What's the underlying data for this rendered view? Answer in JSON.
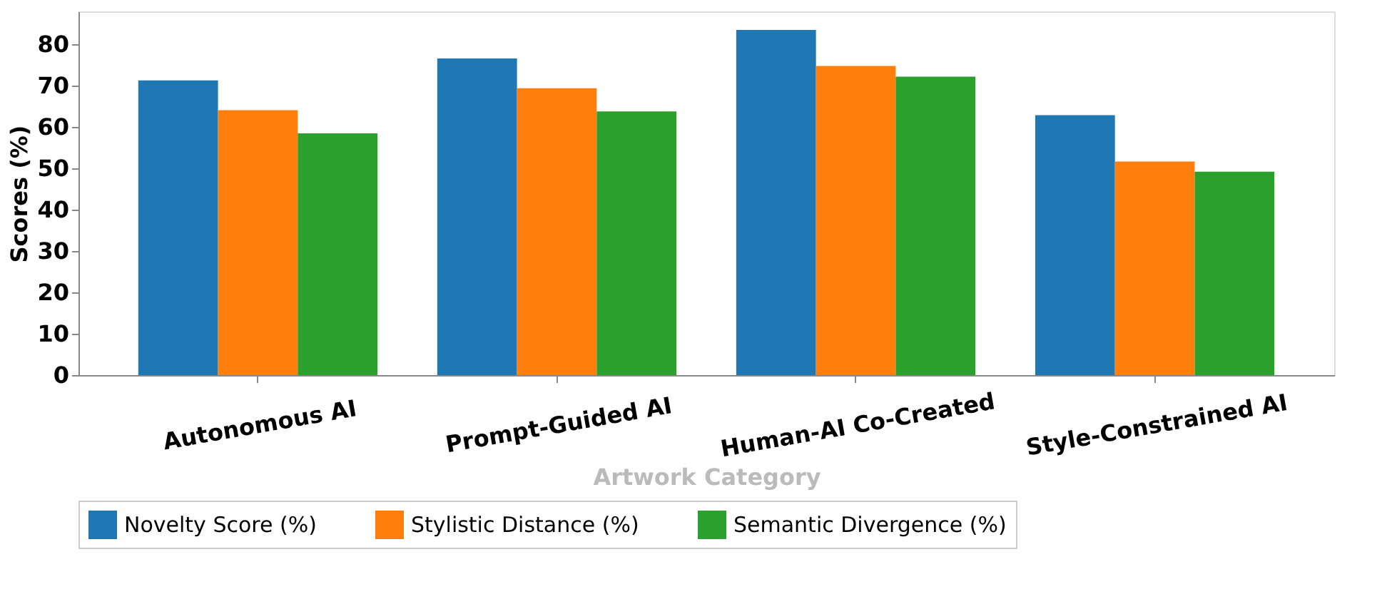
{
  "chart_data": {
    "type": "bar",
    "xlabel": "Artwork Category",
    "ylabel": "Scores (%)",
    "categories": [
      "Autonomous AI",
      "Prompt-Guided AI",
      "Human-AI Co-Created",
      "Style-Constrained AI"
    ],
    "series": [
      {
        "name": "Novelty Score (%)",
        "color": "#1f77b4",
        "values": [
          71.3,
          76.6,
          83.5,
          62.9
        ]
      },
      {
        "name": "Stylistic Distance (%)",
        "color": "#ff7f0e",
        "values": [
          64.1,
          69.4,
          74.8,
          51.7
        ]
      },
      {
        "name": "Semantic Divergence (%)",
        "color": "#2ca02c",
        "values": [
          58.5,
          63.8,
          72.2,
          49.2
        ]
      }
    ],
    "ylim": [
      0,
      88
    ],
    "yticks": [
      0,
      10,
      20,
      30,
      40,
      50,
      60,
      70,
      80
    ],
    "grid": false,
    "legend": "bottom"
  }
}
